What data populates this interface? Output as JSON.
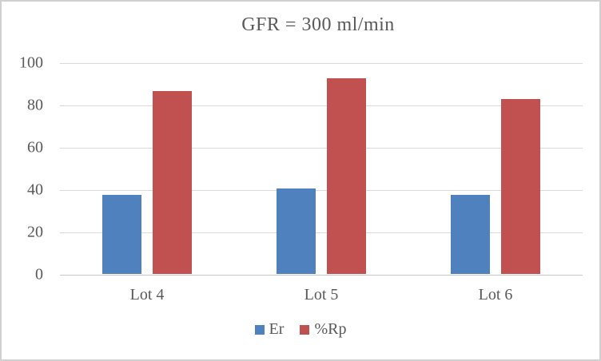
{
  "chart_data": {
    "type": "bar",
    "title": "GFR = 300 ml/min",
    "categories": [
      "Lot 4",
      "Lot 5",
      "Lot 6"
    ],
    "series": [
      {
        "name": "Er",
        "color": "#4E81BD",
        "values": [
          37.5,
          40.5,
          37.5
        ]
      },
      {
        "name": "%Rp",
        "color": "#C05150",
        "values": [
          86.5,
          92.5,
          82.5
        ]
      }
    ],
    "xlabel": "",
    "ylabel": "",
    "ylim": [
      0,
      100
    ],
    "ytick_step": 20,
    "grid": true,
    "legend_position": "bottom"
  },
  "colors": {
    "text": "#595959",
    "gridline": "#D9D9D9",
    "axis_line": "#C6C6C6",
    "background": "#FFFFFF",
    "border": "#D0D0D0"
  }
}
